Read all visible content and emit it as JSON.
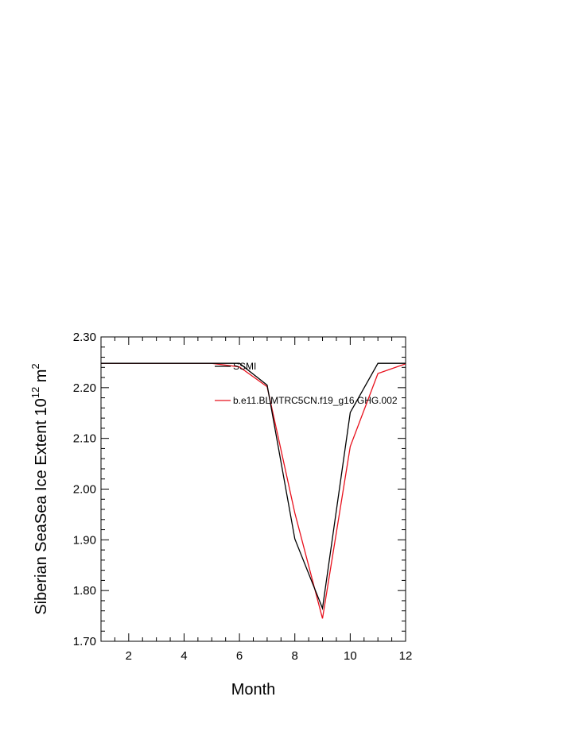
{
  "chart_data": {
    "type": "line",
    "xlabel": "Month",
    "ylabel_main": "Siberian SeaSea Ice Extent 10",
    "ylabel_sup1": "12",
    "ylabel_mid": " m",
    "ylabel_sup2": "2",
    "xlim": [
      1,
      12
    ],
    "ylim": [
      1.7,
      2.3
    ],
    "x_ticks": [
      2,
      4,
      6,
      8,
      10,
      12
    ],
    "y_ticks": [
      "1.70",
      "1.80",
      "1.90",
      "2.00",
      "2.10",
      "2.20",
      "2.30"
    ],
    "legend_placement": "inside-top-center",
    "series": [
      {
        "name": "SSMI",
        "color": "#000000",
        "x": [
          1,
          2,
          3,
          4,
          5,
          6,
          7,
          8,
          9,
          10,
          11,
          12
        ],
        "y": [
          2.248,
          2.248,
          2.248,
          2.248,
          2.248,
          2.248,
          2.205,
          1.902,
          1.765,
          2.151,
          2.248,
          2.248
        ]
      },
      {
        "name": "b.e11.BLMTRC5CN.f19_g16.GHG.002",
        "color": "#e8101c",
        "x": [
          1,
          2,
          3,
          4,
          5,
          6,
          7,
          8,
          9,
          10,
          11,
          12
        ],
        "y": [
          2.248,
          2.248,
          2.248,
          2.248,
          2.248,
          2.241,
          2.202,
          1.953,
          1.745,
          2.084,
          2.228,
          2.247
        ]
      }
    ]
  }
}
